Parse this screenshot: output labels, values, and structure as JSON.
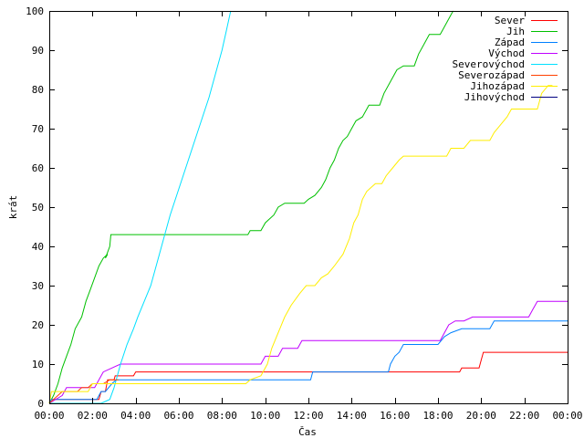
{
  "chart_data": {
    "type": "line",
    "xlabel": "Čas",
    "ylabel": "krát",
    "x_unit": "hours",
    "xlim": [
      0,
      24
    ],
    "ylim": [
      0,
      100
    ],
    "x_ticks": [
      {
        "value": 0,
        "label": "00:00"
      },
      {
        "value": 2,
        "label": "02:00"
      },
      {
        "value": 4,
        "label": "04:00"
      },
      {
        "value": 6,
        "label": "06:00"
      },
      {
        "value": 8,
        "label": "08:00"
      },
      {
        "value": 10,
        "label": "10:00"
      },
      {
        "value": 12,
        "label": "12:00"
      },
      {
        "value": 14,
        "label": "14:00"
      },
      {
        "value": 16,
        "label": "16:00"
      },
      {
        "value": 18,
        "label": "18:00"
      },
      {
        "value": 20,
        "label": "20:00"
      },
      {
        "value": 22,
        "label": "22:00"
      },
      {
        "value": 24,
        "label": "00:00"
      }
    ],
    "y_ticks": [
      0,
      10,
      20,
      30,
      40,
      50,
      60,
      70,
      80,
      90,
      100
    ],
    "grid": false,
    "legend_position": "top-right",
    "series": [
      {
        "name": "Sever",
        "color": "#ff0000",
        "points": [
          [
            0.0,
            0
          ],
          [
            0.1,
            1
          ],
          [
            2.3,
            1
          ],
          [
            2.4,
            3
          ],
          [
            2.6,
            3
          ],
          [
            2.7,
            6
          ],
          [
            3.0,
            6
          ],
          [
            3.05,
            7
          ],
          [
            3.9,
            7
          ],
          [
            4.0,
            8
          ],
          [
            15.7,
            8
          ],
          [
            15.8,
            8
          ],
          [
            19.0,
            8
          ],
          [
            19.1,
            9
          ],
          [
            19.9,
            9
          ],
          [
            20.0,
            11
          ],
          [
            20.1,
            13
          ],
          [
            24.0,
            13
          ]
        ]
      },
      {
        "name": "Jih",
        "color": "#00c000",
        "points": [
          [
            0.0,
            0
          ],
          [
            0.2,
            2
          ],
          [
            0.4,
            5
          ],
          [
            0.6,
            9
          ],
          [
            0.8,
            12
          ],
          [
            1.0,
            15
          ],
          [
            1.2,
            19
          ],
          [
            1.5,
            22
          ],
          [
            1.7,
            26
          ],
          [
            1.9,
            29
          ],
          [
            2.1,
            32
          ],
          [
            2.3,
            35
          ],
          [
            2.5,
            37
          ],
          [
            2.7,
            38
          ],
          [
            2.6,
            37
          ],
          [
            2.8,
            40
          ],
          [
            2.85,
            43
          ],
          [
            9.2,
            43
          ],
          [
            9.3,
            44
          ],
          [
            9.8,
            44
          ],
          [
            10.0,
            46
          ],
          [
            10.2,
            47
          ],
          [
            10.4,
            48
          ],
          [
            10.6,
            50
          ],
          [
            10.9,
            51
          ],
          [
            11.8,
            51
          ],
          [
            12.0,
            52
          ],
          [
            12.3,
            53
          ],
          [
            12.6,
            55
          ],
          [
            12.8,
            57
          ],
          [
            13.0,
            60
          ],
          [
            13.2,
            62
          ],
          [
            13.4,
            65
          ],
          [
            13.6,
            67
          ],
          [
            13.8,
            68
          ],
          [
            14.0,
            70
          ],
          [
            14.2,
            72
          ],
          [
            14.5,
            73
          ],
          [
            14.8,
            76
          ],
          [
            15.3,
            76
          ],
          [
            15.5,
            79
          ],
          [
            15.8,
            82
          ],
          [
            16.1,
            85
          ],
          [
            16.4,
            86
          ],
          [
            16.9,
            86
          ],
          [
            17.1,
            89
          ],
          [
            17.4,
            92
          ],
          [
            17.6,
            94
          ],
          [
            18.1,
            94
          ],
          [
            18.3,
            96
          ],
          [
            18.6,
            99
          ],
          [
            18.7,
            100
          ]
        ]
      },
      {
        "name": "Západ",
        "color": "#0080ff",
        "points": [
          [
            0.0,
            0
          ],
          [
            0.1,
            1
          ],
          [
            2.2,
            1
          ],
          [
            2.4,
            3
          ],
          [
            2.6,
            3
          ],
          [
            2.9,
            5
          ],
          [
            3.1,
            6
          ],
          [
            12.1,
            6
          ],
          [
            12.2,
            8
          ],
          [
            15.7,
            8
          ],
          [
            15.8,
            10
          ],
          [
            16.0,
            12
          ],
          [
            16.2,
            13
          ],
          [
            16.4,
            15
          ],
          [
            18.0,
            15
          ],
          [
            18.3,
            17
          ],
          [
            18.6,
            18
          ],
          [
            19.1,
            19
          ],
          [
            20.4,
            19
          ],
          [
            20.6,
            21
          ],
          [
            24.0,
            21
          ]
        ]
      },
      {
        "name": "Východ",
        "color": "#c000ff",
        "points": [
          [
            0.0,
            0
          ],
          [
            0.6,
            2
          ],
          [
            0.8,
            4
          ],
          [
            2.1,
            4
          ],
          [
            2.3,
            6
          ],
          [
            2.5,
            8
          ],
          [
            2.9,
            9
          ],
          [
            3.3,
            10
          ],
          [
            9.8,
            10
          ],
          [
            10.0,
            12
          ],
          [
            10.6,
            12
          ],
          [
            10.8,
            14
          ],
          [
            11.5,
            14
          ],
          [
            11.7,
            16
          ],
          [
            18.1,
            16
          ],
          [
            18.3,
            18
          ],
          [
            18.5,
            20
          ],
          [
            18.8,
            21
          ],
          [
            19.2,
            21
          ],
          [
            19.6,
            22
          ],
          [
            22.2,
            22
          ],
          [
            22.4,
            24
          ],
          [
            22.6,
            26
          ],
          [
            24.0,
            26
          ]
        ]
      },
      {
        "name": "Severovýchod",
        "color": "#00e0ff",
        "points": [
          [
            0.0,
            0
          ],
          [
            2.4,
            0
          ],
          [
            2.8,
            1
          ],
          [
            3.0,
            4
          ],
          [
            3.3,
            10
          ],
          [
            3.6,
            15
          ],
          [
            3.9,
            19
          ],
          [
            4.1,
            22
          ],
          [
            4.4,
            26
          ],
          [
            4.7,
            30
          ],
          [
            5.0,
            36
          ],
          [
            5.3,
            42
          ],
          [
            5.6,
            48
          ],
          [
            5.9,
            53
          ],
          [
            6.2,
            58
          ],
          [
            6.5,
            63
          ],
          [
            6.8,
            68
          ],
          [
            7.1,
            73
          ],
          [
            7.4,
            78
          ],
          [
            7.7,
            84
          ],
          [
            8.0,
            90
          ],
          [
            8.2,
            95
          ],
          [
            8.4,
            100
          ]
        ]
      },
      {
        "name": "Severozápad",
        "color": "#ff4000",
        "points": [
          [
            0.0,
            0
          ],
          [
            0.4,
            2
          ],
          [
            0.6,
            3
          ],
          [
            1.3,
            3
          ],
          [
            1.5,
            4
          ],
          [
            1.8,
            4
          ],
          [
            2.0,
            5
          ],
          [
            2.2,
            5
          ],
          [
            2.5,
            5
          ],
          [
            2.8,
            6
          ],
          [
            3.2,
            6
          ]
        ]
      },
      {
        "name": "Jihozápad",
        "color": "#ffee00",
        "points": [
          [
            0.0,
            0
          ],
          [
            0.1,
            3
          ],
          [
            0.5,
            3
          ],
          [
            1.8,
            3
          ],
          [
            2.0,
            5
          ],
          [
            9.1,
            5
          ],
          [
            9.3,
            6
          ],
          [
            9.8,
            7
          ],
          [
            10.1,
            10
          ],
          [
            10.3,
            14
          ],
          [
            10.6,
            18
          ],
          [
            10.9,
            22
          ],
          [
            11.2,
            25
          ],
          [
            11.6,
            28
          ],
          [
            11.9,
            30
          ],
          [
            12.3,
            30
          ],
          [
            12.6,
            32
          ],
          [
            12.9,
            33
          ],
          [
            13.2,
            35
          ],
          [
            13.6,
            38
          ],
          [
            13.9,
            42
          ],
          [
            14.1,
            46
          ],
          [
            14.3,
            48
          ],
          [
            14.5,
            52
          ],
          [
            14.7,
            54
          ],
          [
            14.9,
            55
          ],
          [
            15.1,
            56
          ],
          [
            15.4,
            56
          ],
          [
            15.6,
            58
          ],
          [
            15.9,
            60
          ],
          [
            16.2,
            62
          ],
          [
            16.4,
            63
          ],
          [
            18.4,
            63
          ],
          [
            18.6,
            65
          ],
          [
            19.2,
            65
          ],
          [
            19.5,
            67
          ],
          [
            20.4,
            67
          ],
          [
            20.6,
            69
          ],
          [
            20.9,
            71
          ],
          [
            21.2,
            73
          ],
          [
            21.4,
            75
          ],
          [
            22.6,
            75
          ],
          [
            22.8,
            79
          ],
          [
            23.1,
            81
          ],
          [
            23.3,
            81
          ]
        ]
      },
      {
        "name": "Jihovýchod",
        "color": "#000080",
        "points": []
      }
    ]
  }
}
